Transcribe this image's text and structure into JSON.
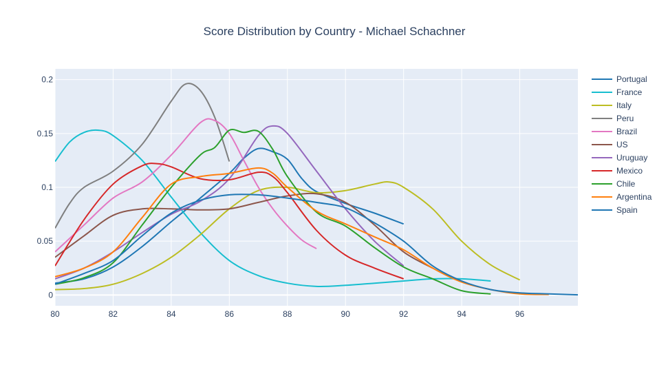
{
  "chart_data": {
    "type": "line",
    "title": "Score Distribution by Country - Michael Schachner",
    "xlabel": "",
    "ylabel": "",
    "xlim": [
      80,
      98
    ],
    "ylim": [
      -0.01,
      0.21
    ],
    "x_ticks": [
      {
        "value": 80,
        "label": "80"
      },
      {
        "value": 82,
        "label": "82"
      },
      {
        "value": 84,
        "label": "84"
      },
      {
        "value": 86,
        "label": "86"
      },
      {
        "value": 88,
        "label": "88"
      },
      {
        "value": 90,
        "label": "90"
      },
      {
        "value": 92,
        "label": "92"
      },
      {
        "value": 94,
        "label": "94"
      },
      {
        "value": 96,
        "label": "96"
      }
    ],
    "y_ticks": [
      {
        "value": 0,
        "label": "0"
      },
      {
        "value": 0.05,
        "label": "0.05"
      },
      {
        "value": 0.1,
        "label": "0.1"
      },
      {
        "value": 0.15,
        "label": "0.15"
      },
      {
        "value": 0.2,
        "label": "0.2"
      }
    ],
    "grid": true,
    "legend_position": "right",
    "plot_bgcolor": "#e5ecf6",
    "series": [
      {
        "name": "Portugal",
        "color": "#1f77b4",
        "points": [
          [
            80,
            0.011
          ],
          [
            81,
            0.015
          ],
          [
            82,
            0.026
          ],
          [
            83,
            0.045
          ],
          [
            84,
            0.068
          ],
          [
            85,
            0.09
          ],
          [
            86,
            0.113
          ],
          [
            86.5,
            0.127
          ],
          [
            87,
            0.136
          ],
          [
            87.5,
            0.133
          ],
          [
            88,
            0.126
          ],
          [
            88.5,
            0.108
          ],
          [
            89,
            0.096
          ],
          [
            90,
            0.085
          ],
          [
            91,
            0.076
          ],
          [
            92,
            0.066
          ]
        ]
      },
      {
        "name": "France",
        "color": "#17becf",
        "points": [
          [
            80,
            0.124
          ],
          [
            80.5,
            0.142
          ],
          [
            81,
            0.151
          ],
          [
            81.5,
            0.153
          ],
          [
            82,
            0.148
          ],
          [
            83,
            0.125
          ],
          [
            84,
            0.091
          ],
          [
            85,
            0.058
          ],
          [
            86,
            0.032
          ],
          [
            87,
            0.018
          ],
          [
            88,
            0.011
          ],
          [
            89,
            0.008
          ],
          [
            90,
            0.009
          ],
          [
            91,
            0.011
          ],
          [
            92,
            0.013
          ],
          [
            93,
            0.015
          ],
          [
            94,
            0.015
          ],
          [
            95,
            0.013
          ]
        ]
      },
      {
        "name": "Italy",
        "color": "#bcbd22",
        "points": [
          [
            80,
            0.005
          ],
          [
            81,
            0.006
          ],
          [
            82,
            0.01
          ],
          [
            83,
            0.02
          ],
          [
            84,
            0.035
          ],
          [
            85,
            0.056
          ],
          [
            86,
            0.08
          ],
          [
            87,
            0.097
          ],
          [
            88,
            0.1
          ],
          [
            89,
            0.095
          ],
          [
            90,
            0.097
          ],
          [
            91,
            0.103
          ],
          [
            91.5,
            0.105
          ],
          [
            92,
            0.1
          ],
          [
            93,
            0.08
          ],
          [
            94,
            0.05
          ],
          [
            95,
            0.028
          ],
          [
            96,
            0.014
          ]
        ]
      },
      {
        "name": "Peru",
        "color": "#7f7f7f",
        "points": [
          [
            80,
            0.062
          ],
          [
            80.5,
            0.085
          ],
          [
            81,
            0.1
          ],
          [
            82,
            0.115
          ],
          [
            83,
            0.14
          ],
          [
            84,
            0.18
          ],
          [
            84.5,
            0.196
          ],
          [
            85,
            0.19
          ],
          [
            85.5,
            0.165
          ],
          [
            86,
            0.124
          ]
        ]
      },
      {
        "name": "Brazil",
        "color": "#e377c2",
        "points": [
          [
            80,
            0.04
          ],
          [
            81,
            0.065
          ],
          [
            82,
            0.09
          ],
          [
            83,
            0.105
          ],
          [
            84,
            0.13
          ],
          [
            85,
            0.16
          ],
          [
            85.5,
            0.162
          ],
          [
            86,
            0.15
          ],
          [
            86.5,
            0.125
          ],
          [
            87,
            0.1
          ],
          [
            87.5,
            0.08
          ],
          [
            88,
            0.064
          ],
          [
            88.5,
            0.051
          ],
          [
            89,
            0.043
          ]
        ]
      },
      {
        "name": "US",
        "color": "#8c564b",
        "points": [
          [
            80,
            0.035
          ],
          [
            81,
            0.055
          ],
          [
            82,
            0.074
          ],
          [
            83,
            0.08
          ],
          [
            84,
            0.08
          ],
          [
            85,
            0.079
          ],
          [
            86,
            0.08
          ],
          [
            87,
            0.086
          ],
          [
            88,
            0.092
          ],
          [
            89,
            0.094
          ],
          [
            90,
            0.086
          ],
          [
            91,
            0.065
          ],
          [
            92,
            0.04
          ],
          [
            93,
            0.025
          ]
        ]
      },
      {
        "name": "Uruguay",
        "color": "#9467bd",
        "points": [
          [
            80,
            0.015
          ],
          [
            81,
            0.025
          ],
          [
            82,
            0.04
          ],
          [
            83,
            0.058
          ],
          [
            84,
            0.075
          ],
          [
            85,
            0.087
          ],
          [
            86,
            0.108
          ],
          [
            87,
            0.148
          ],
          [
            87.5,
            0.157
          ],
          [
            88,
            0.15
          ],
          [
            89,
            0.115
          ],
          [
            90,
            0.08
          ],
          [
            91,
            0.05
          ],
          [
            92,
            0.027
          ]
        ]
      },
      {
        "name": "Mexico",
        "color": "#d62728",
        "points": [
          [
            80,
            0.027
          ],
          [
            81,
            0.07
          ],
          [
            82,
            0.103
          ],
          [
            83,
            0.12
          ],
          [
            83.5,
            0.122
          ],
          [
            84,
            0.119
          ],
          [
            85,
            0.108
          ],
          [
            86,
            0.107
          ],
          [
            87,
            0.114
          ],
          [
            87.5,
            0.11
          ],
          [
            88,
            0.095
          ],
          [
            89,
            0.06
          ],
          [
            90,
            0.037
          ],
          [
            91,
            0.025
          ],
          [
            92,
            0.015
          ]
        ]
      },
      {
        "name": "Chile",
        "color": "#2ca02c",
        "points": [
          [
            80,
            0.01
          ],
          [
            81,
            0.016
          ],
          [
            82,
            0.03
          ],
          [
            83,
            0.065
          ],
          [
            84,
            0.1
          ],
          [
            85,
            0.13
          ],
          [
            85.5,
            0.137
          ],
          [
            86,
            0.153
          ],
          [
            86.5,
            0.151
          ],
          [
            87,
            0.152
          ],
          [
            87.5,
            0.135
          ],
          [
            88,
            0.11
          ],
          [
            89,
            0.077
          ],
          [
            90,
            0.064
          ],
          [
            91,
            0.044
          ],
          [
            92,
            0.026
          ],
          [
            93,
            0.015
          ],
          [
            94,
            0.004
          ],
          [
            95,
            0.001
          ]
        ]
      },
      {
        "name": "Argentina",
        "color": "#ff7f0e",
        "points": [
          [
            80,
            0.017
          ],
          [
            81,
            0.025
          ],
          [
            82,
            0.04
          ],
          [
            83,
            0.072
          ],
          [
            84,
            0.103
          ],
          [
            85,
            0.11
          ],
          [
            86,
            0.113
          ],
          [
            87,
            0.118
          ],
          [
            87.5,
            0.113
          ],
          [
            88,
            0.1
          ],
          [
            89,
            0.078
          ],
          [
            90,
            0.066
          ],
          [
            91,
            0.054
          ],
          [
            92,
            0.042
          ],
          [
            93,
            0.025
          ],
          [
            94,
            0.012
          ],
          [
            95,
            0.005
          ],
          [
            96,
            0.001
          ],
          [
            97,
            0.0005
          ]
        ]
      },
      {
        "name": "Spain",
        "color": "#1f77b4",
        "points": [
          [
            80,
            0.01
          ],
          [
            81,
            0.02
          ],
          [
            82,
            0.032
          ],
          [
            83,
            0.055
          ],
          [
            84,
            0.076
          ],
          [
            85,
            0.088
          ],
          [
            86,
            0.093
          ],
          [
            87,
            0.093
          ],
          [
            88,
            0.09
          ],
          [
            89,
            0.086
          ],
          [
            90,
            0.081
          ],
          [
            91,
            0.067
          ],
          [
            92,
            0.05
          ],
          [
            93,
            0.027
          ],
          [
            94,
            0.013
          ],
          [
            95,
            0.005
          ],
          [
            96,
            0.002
          ],
          [
            97,
            0.001
          ],
          [
            98,
            0.0002
          ]
        ]
      }
    ]
  }
}
